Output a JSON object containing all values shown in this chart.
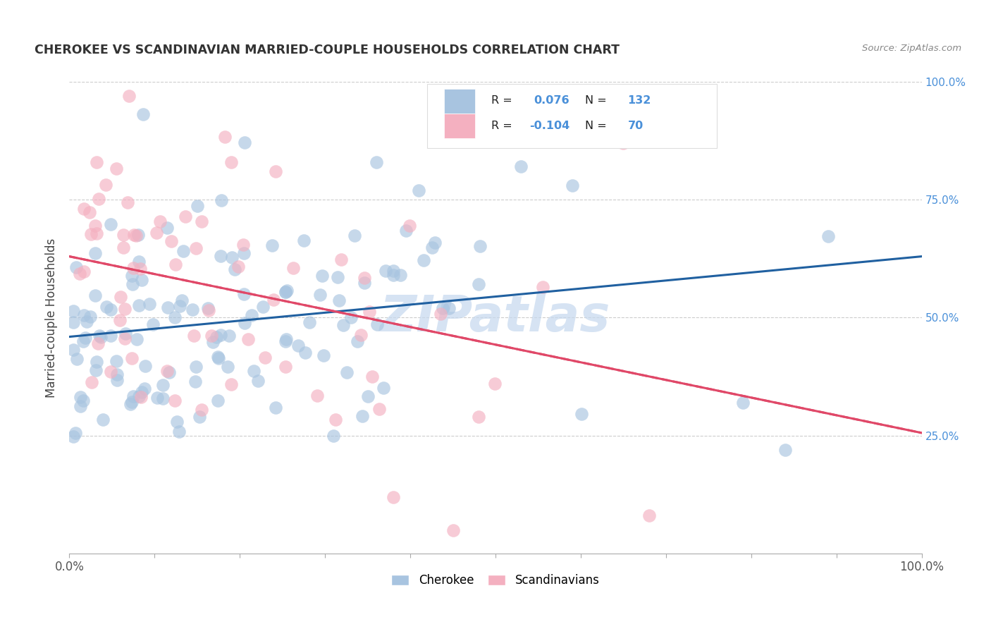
{
  "title": "CHEROKEE VS SCANDINAVIAN MARRIED-COUPLE HOUSEHOLDS CORRELATION CHART",
  "source": "Source: ZipAtlas.com",
  "ylabel": "Married-couple Households",
  "cherokee_R": 0.076,
  "cherokee_N": 132,
  "scand_R": -0.104,
  "scand_N": 70,
  "cherokee_color": "#a8c4e0",
  "cherokee_line_color": "#2060a0",
  "scand_color": "#f4b0c0",
  "scand_line_color": "#e04868",
  "background_color": "#ffffff",
  "grid_color": "#cccccc",
  "watermark": "ZIPatlas",
  "watermark_color": "#c5d8ee",
  "title_color": "#333333",
  "right_ytick_color": "#4a90d9",
  "legend_color_blue": "#4a90d9",
  "legend_color_pink": "#e04868"
}
